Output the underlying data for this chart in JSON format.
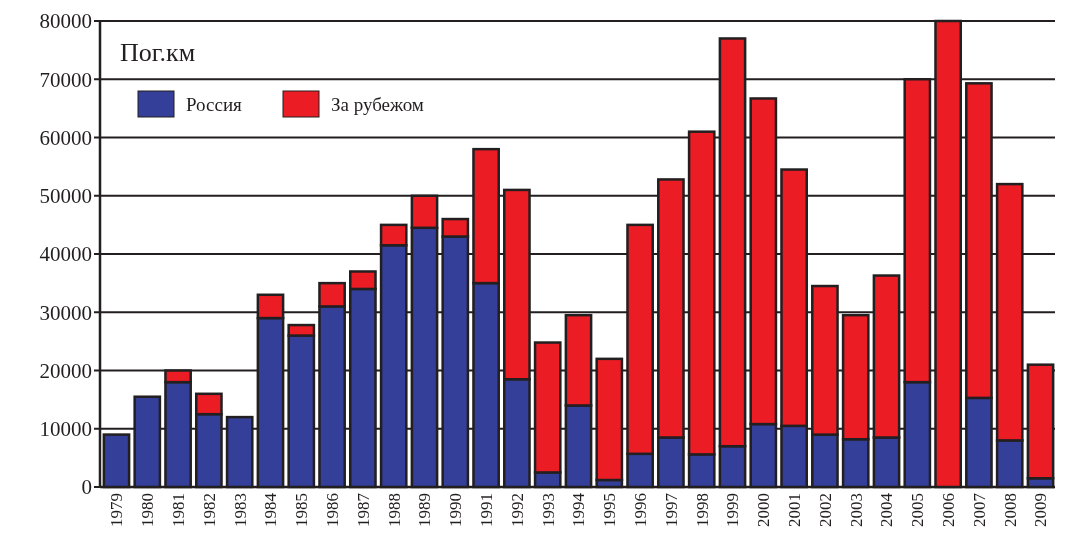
{
  "chart_data": {
    "type": "bar",
    "stacked": true,
    "ylabel": "Пог.км",
    "categories": [
      "1979",
      "1980",
      "1981",
      "1982",
      "1983",
      "1984",
      "1985",
      "1986",
      "1987",
      "1988",
      "1989",
      "1990",
      "1991",
      "1992",
      "1993",
      "1994",
      "1995",
      "1996",
      "1997",
      "1998",
      "1999",
      "2000",
      "2001",
      "2002",
      "2003",
      "2004",
      "2005",
      "2006",
      "2007",
      "2008",
      "2009"
    ],
    "series": [
      {
        "name": "Россия",
        "color": "#333f99",
        "values": [
          9000,
          15500,
          18000,
          12500,
          12000,
          29000,
          26000,
          31000,
          34000,
          41500,
          44500,
          43000,
          35000,
          18500,
          2500,
          14000,
          1200,
          5700,
          8500,
          5600,
          7000,
          10800,
          10500,
          9000,
          8200,
          8500,
          18000,
          0,
          15300,
          8000,
          1500
        ]
      },
      {
        "name": "За рубежом",
        "color": "#ec1c24",
        "values": [
          0,
          0,
          2000,
          3500,
          0,
          4000,
          1800,
          4000,
          3000,
          3500,
          5500,
          3000,
          23000,
          32500,
          22300,
          15500,
          20800,
          39300,
          44300,
          55400,
          70000,
          55900,
          44000,
          25500,
          21300,
          27800,
          52000,
          80000,
          54000,
          44000,
          19500
        ]
      }
    ],
    "ylim": [
      0,
      80000
    ],
    "yticks": [
      0,
      10000,
      20000,
      30000,
      40000,
      50000,
      60000,
      70000,
      80000
    ],
    "grid": "y",
    "legend": "top left"
  }
}
